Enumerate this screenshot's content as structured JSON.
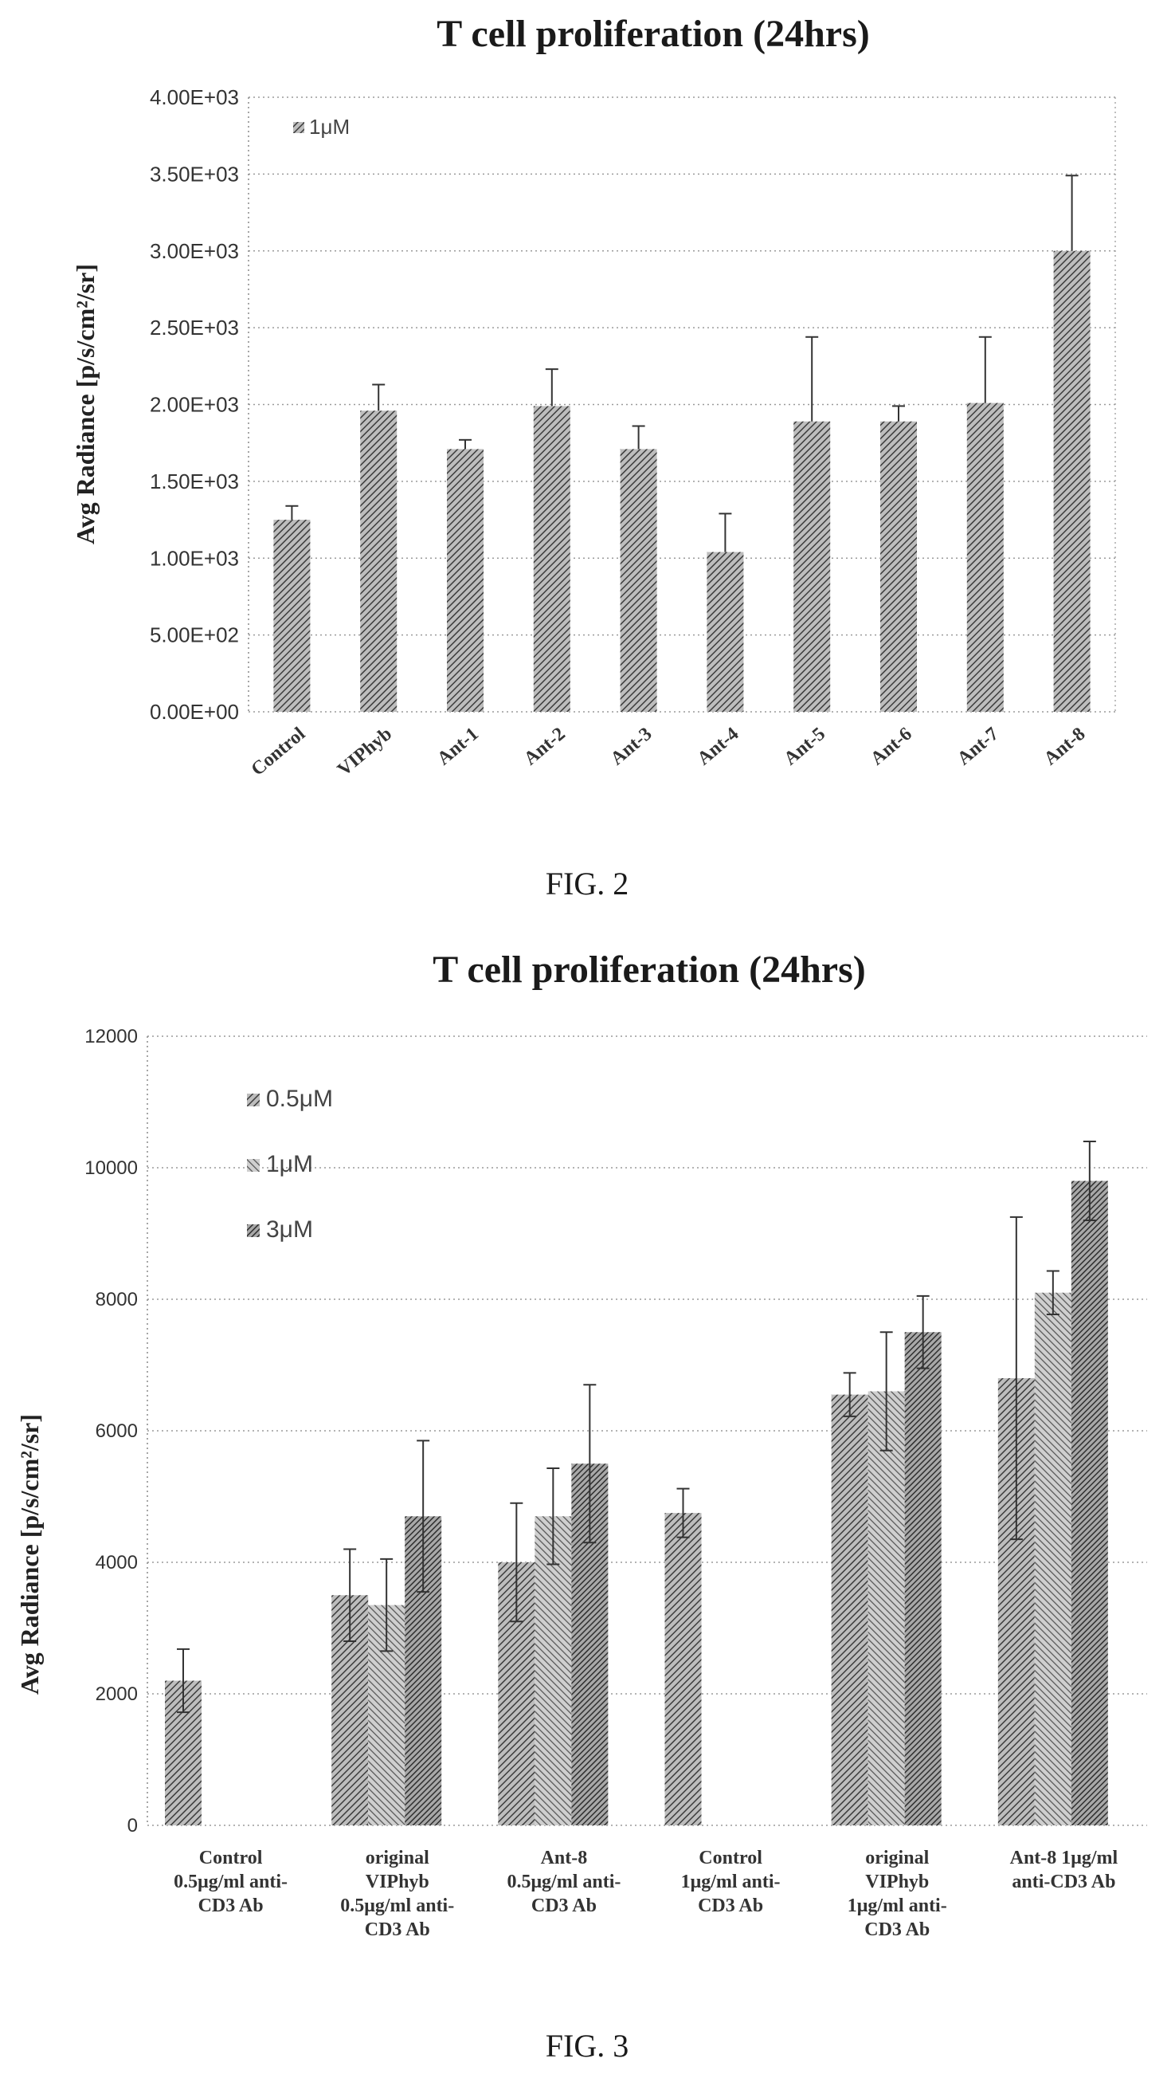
{
  "figure_captions": [
    "FIG. 2",
    "FIG. 3"
  ],
  "chart_data": [
    {
      "type": "bar",
      "title": "T cell proliferation (24hrs)",
      "ylabel": "Avg Radiance [p/s/cm²/sr]",
      "xlabel": "",
      "ylim": [
        0,
        4000
      ],
      "yticks": [
        0,
        500,
        1000,
        1500,
        2000,
        2500,
        3000,
        3500,
        4000
      ],
      "ytick_labels": [
        "0.00E+00",
        "5.00E+02",
        "1.00E+03",
        "1.50E+03",
        "2.00E+03",
        "2.50E+03",
        "3.00E+03",
        "3.50E+03",
        "4.00E+03"
      ],
      "categories": [
        "Control",
        "VIPhyb",
        "Ant-1",
        "Ant-2",
        "Ant-3",
        "Ant-4",
        "Ant-5",
        "Ant-6",
        "Ant-7",
        "Ant-8"
      ],
      "series": [
        {
          "name": "1μM",
          "values": [
            1250,
            1960,
            1710,
            1990,
            1710,
            1040,
            1890,
            1890,
            2010,
            3000
          ],
          "errors": [
            90,
            170,
            60,
            240,
            150,
            250,
            550,
            100,
            430,
            490
          ]
        }
      ],
      "grid": true,
      "legend_position": "top-left",
      "colors": {
        "bar": "#6a6a6a",
        "grid": "#9a9a9a"
      }
    },
    {
      "type": "bar",
      "title": "T cell proliferation (24hrs)",
      "ylabel": "Avg Radiance [p/s/cm²/sr]",
      "xlabel": "",
      "ylim": [
        0,
        12000
      ],
      "yticks": [
        0,
        2000,
        4000,
        6000,
        8000,
        10000,
        12000
      ],
      "ytick_labels": [
        "0",
        "2000",
        "4000",
        "6000",
        "8000",
        "10000",
        "12000"
      ],
      "categories": [
        [
          "Control",
          "0.5μg/ml anti-",
          "CD3 Ab"
        ],
        [
          "original",
          "VIPhyb",
          "0.5μg/ml anti-",
          "CD3 Ab"
        ],
        [
          "Ant-8",
          "0.5μg/ml anti-",
          "CD3 Ab"
        ],
        [
          "Control",
          "1μg/ml anti-",
          "CD3 Ab"
        ],
        [
          "original",
          "VIPhyb",
          "1μg/ml anti-",
          "CD3 Ab"
        ],
        [
          "Ant-8   1μg/ml",
          "anti-CD3 Ab"
        ]
      ],
      "series": [
        {
          "name": "0.5μM",
          "values": [
            2200,
            3500,
            4000,
            4750,
            6550,
            6800
          ],
          "errors": [
            480,
            700,
            900,
            370,
            330,
            2450
          ]
        },
        {
          "name": "1μM",
          "values": [
            null,
            3350,
            4700,
            null,
            6600,
            8100
          ],
          "errors": [
            null,
            700,
            730,
            null,
            900,
            330
          ]
        },
        {
          "name": "3μM",
          "values": [
            null,
            4700,
            5500,
            null,
            7500,
            9800
          ],
          "errors": [
            null,
            1150,
            1200,
            null,
            550,
            600
          ]
        }
      ],
      "grid": true,
      "legend_position": "top-left",
      "colors": {
        "0.5μM": "#6f6f6f",
        "1μM": "#8a8a8a",
        "3μM": "#5a5a5a",
        "grid": "#9a9a9a"
      }
    }
  ]
}
